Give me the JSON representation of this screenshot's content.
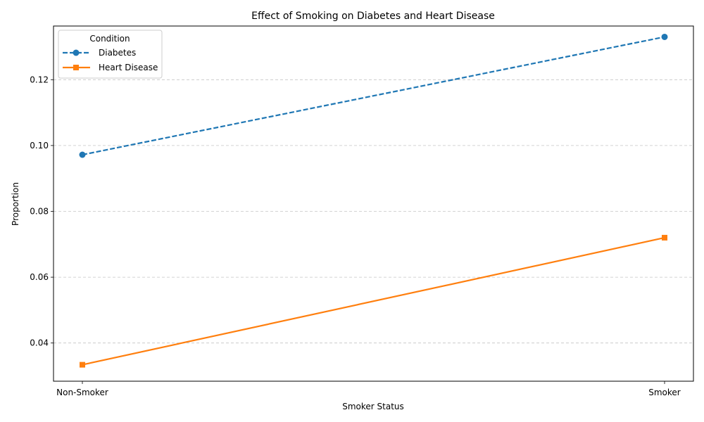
{
  "chart_data": {
    "type": "line",
    "title": "Effect of Smoking on Diabetes and Heart Disease",
    "xlabel": "Smoker Status",
    "ylabel": "Proportion",
    "categories": [
      "Non-Smoker",
      "Smoker"
    ],
    "yticks": [
      "0.04",
      "0.06",
      "0.08",
      "0.10",
      "0.12"
    ],
    "ylim": [
      0.0284,
      0.1363
    ],
    "grid": "y-dashed",
    "legend": {
      "title": "Condition",
      "placement": "upper-left"
    },
    "series": [
      {
        "name": "Diabetes",
        "values": [
          0.0972,
          0.133
        ],
        "color": "#1f77b4",
        "linestyle": "dashed",
        "marker": "circle"
      },
      {
        "name": "Heart Disease",
        "values": [
          0.0334,
          0.072
        ],
        "color": "#ff7f0e",
        "linestyle": "solid",
        "marker": "square"
      }
    ]
  }
}
